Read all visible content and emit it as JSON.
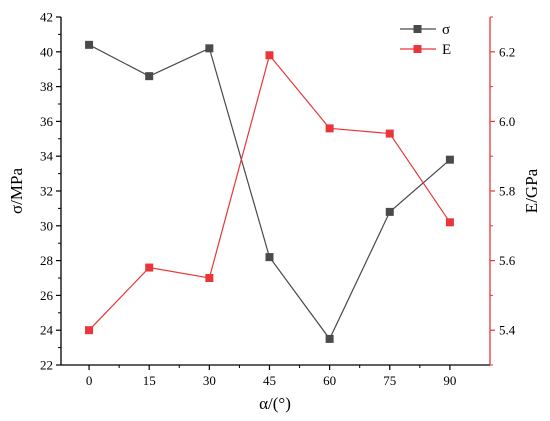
{
  "chart_data": {
    "type": "line",
    "title": "",
    "x": [
      0,
      15,
      30,
      45,
      60,
      75,
      90
    ],
    "xlabel": "α/(°)",
    "xlim": [
      -7,
      100
    ],
    "xticks": [
      "0",
      "15",
      "30",
      "45",
      "60",
      "75",
      "90"
    ],
    "y_left": {
      "label": "σ/MPa",
      "lim": [
        22,
        42
      ],
      "ticks": [
        "22",
        "24",
        "26",
        "28",
        "30",
        "32",
        "34",
        "36",
        "38",
        "40",
        "42"
      ],
      "color": "#000000"
    },
    "y_right": {
      "label": "E/GPa",
      "lim": [
        5.3,
        6.3
      ],
      "ticks": [
        "5.4",
        "5.6",
        "5.8",
        "6.0",
        "6.2"
      ],
      "color": "#e8363a"
    },
    "series": [
      {
        "name": "σ",
        "axis": "left",
        "color": "#4a4a4a",
        "marker": "square",
        "values": [
          40.4,
          38.6,
          40.2,
          28.2,
          23.5,
          30.8,
          33.8
        ]
      },
      {
        "name": "E",
        "axis": "right",
        "color": "#e8363a",
        "marker": "square",
        "values": [
          5.4,
          5.58,
          5.55,
          6.19,
          5.98,
          5.965,
          5.71
        ]
      }
    ],
    "legend": "top-right",
    "grid": false
  }
}
